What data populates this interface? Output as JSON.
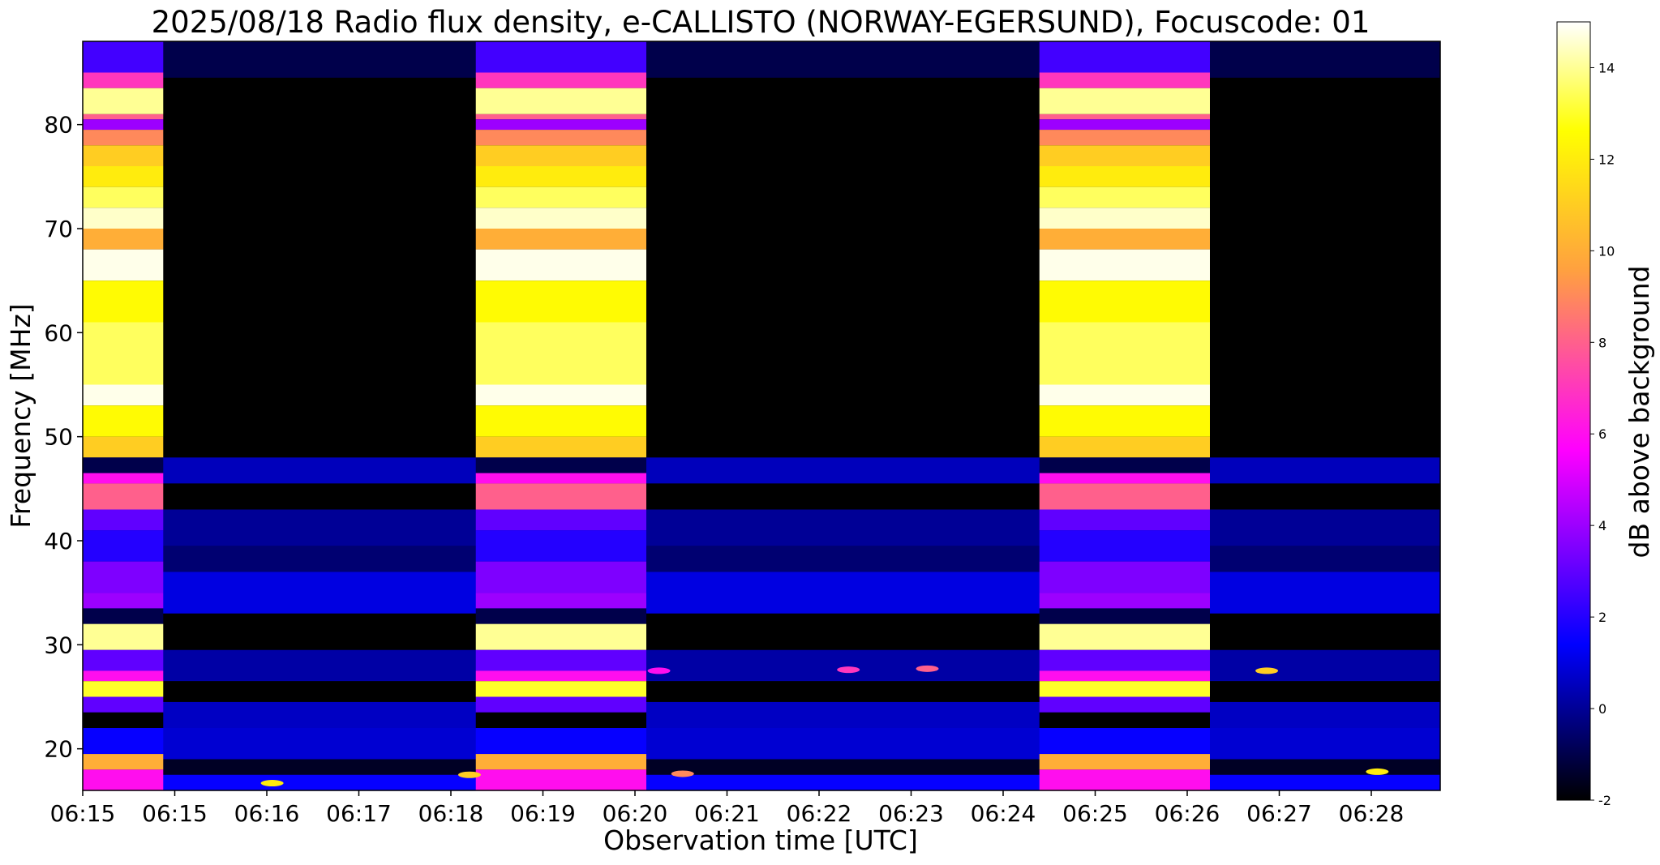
{
  "chart_data": {
    "type": "heatmap",
    "title": "2025/08/18  Radio flux density, e-CALLISTO (NORWAY-EGERSUND), Focuscode: 01",
    "xlabel": "Observation time [UTC]",
    "ylabel": "Frequency [MHz]",
    "colorbar_label": "dB above background",
    "x_tick_labels": [
      "06:15",
      "06:15",
      "06:16",
      "06:17",
      "06:18",
      "06:19",
      "06:20",
      "06:21",
      "06:22",
      "06:23",
      "06:24",
      "06:25",
      "06:26",
      "06:27",
      "06:28"
    ],
    "ylim": [
      16,
      88
    ],
    "y_ticks": [
      20,
      30,
      40,
      50,
      60,
      70,
      80
    ],
    "clim": [
      -2,
      15
    ],
    "colorbar_ticks": [
      -2,
      0,
      2,
      4,
      6,
      8,
      10,
      12,
      14
    ],
    "colormap": [
      "#000000",
      "#0000ff",
      "#ff00ff",
      "#ffa040",
      "#ffff00",
      "#ffffff"
    ],
    "grid": false,
    "calibration_segments": [
      {
        "start": "06:15:00",
        "end": "06:15:51"
      },
      {
        "start": "06:19:09",
        "end": "06:20:57"
      },
      {
        "start": "06:25:06",
        "end": "06:26:54"
      }
    ],
    "calibration_profile": [
      {
        "freq_range": [
          85,
          88
        ],
        "db": 2.5
      },
      {
        "freq_range": [
          83.5,
          85
        ],
        "db": 7
      },
      {
        "freq_range": [
          81,
          83.5
        ],
        "db": 14
      },
      {
        "freq_range": [
          80.5,
          81
        ],
        "db": 8
      },
      {
        "freq_range": [
          79.5,
          80.5
        ],
        "db": 4
      },
      {
        "freq_range": [
          78,
          79.5
        ],
        "db": 9
      },
      {
        "freq_range": [
          76,
          78
        ],
        "db": 11
      },
      {
        "freq_range": [
          74,
          76
        ],
        "db": 12
      },
      {
        "freq_range": [
          72,
          74
        ],
        "db": 13.5
      },
      {
        "freq_range": [
          70,
          72
        ],
        "db": 14.5
      },
      {
        "freq_range": [
          68,
          70
        ],
        "db": 10
      },
      {
        "freq_range": [
          65,
          68
        ],
        "db": 14.8
      },
      {
        "freq_range": [
          61,
          65
        ],
        "db": 12.5
      },
      {
        "freq_range": [
          55,
          61
        ],
        "db": 13.5
      },
      {
        "freq_range": [
          53,
          55
        ],
        "db": 14.8
      },
      {
        "freq_range": [
          50,
          53
        ],
        "db": 12.5
      },
      {
        "freq_range": [
          48,
          50
        ],
        "db": 11
      },
      {
        "freq_range": [
          46.5,
          48
        ],
        "db": -1
      },
      {
        "freq_range": [
          45.5,
          46.5
        ],
        "db": 6
      },
      {
        "freq_range": [
          43,
          45.5
        ],
        "db": 8
      },
      {
        "freq_range": [
          41,
          43
        ],
        "db": 3
      },
      {
        "freq_range": [
          38,
          41
        ],
        "db": 2
      },
      {
        "freq_range": [
          35,
          38
        ],
        "db": 3.5
      },
      {
        "freq_range": [
          33.5,
          35
        ],
        "db": 4
      },
      {
        "freq_range": [
          32,
          33.5
        ],
        "db": -1
      },
      {
        "freq_range": [
          29.5,
          32
        ],
        "db": 14
      },
      {
        "freq_range": [
          27.5,
          29.5
        ],
        "db": 3
      },
      {
        "freq_range": [
          26.5,
          27.5
        ],
        "db": 6
      },
      {
        "freq_range": [
          25,
          26.5
        ],
        "db": 13
      },
      {
        "freq_range": [
          23.5,
          25
        ],
        "db": 3
      },
      {
        "freq_range": [
          22,
          23.5
        ],
        "db": -2
      },
      {
        "freq_range": [
          19.5,
          22
        ],
        "db": 1.5
      },
      {
        "freq_range": [
          18,
          19.5
        ],
        "db": 10
      },
      {
        "freq_range": [
          16,
          18
        ],
        "db": 6
      }
    ],
    "background_profile": [
      {
        "freq_range": [
          84.5,
          88
        ],
        "db": -1
      },
      {
        "freq_range": [
          48,
          84.5
        ],
        "db": -2
      },
      {
        "freq_range": [
          45.5,
          48
        ],
        "db": 0.5
      },
      {
        "freq_range": [
          43,
          45.5
        ],
        "db": -2
      },
      {
        "freq_range": [
          39.5,
          43
        ],
        "db": 0
      },
      {
        "freq_range": [
          37,
          39.5
        ],
        "db": -0.5
      },
      {
        "freq_range": [
          33,
          37
        ],
        "db": 1
      },
      {
        "freq_range": [
          29.5,
          33
        ],
        "db": -2
      },
      {
        "freq_range": [
          26.5,
          29.5
        ],
        "db": 0.2
      },
      {
        "freq_range": [
          24.5,
          26.5
        ],
        "db": -2
      },
      {
        "freq_range": [
          22,
          24.5
        ],
        "db": 0.6
      },
      {
        "freq_range": [
          19,
          22
        ],
        "db": 0.8
      },
      {
        "freq_range": [
          17.5,
          19
        ],
        "db": -1.5
      },
      {
        "freq_range": [
          16,
          17.5
        ],
        "db": 1.5
      }
    ],
    "hot_spots": [
      {
        "time": "06:17:00",
        "freq": 16.7,
        "db": 12
      },
      {
        "time": "06:19:05",
        "freq": 17.5,
        "db": 11
      },
      {
        "time": "06:21:20",
        "freq": 17.6,
        "db": 9
      },
      {
        "time": "06:21:05",
        "freq": 27.5,
        "db": 6
      },
      {
        "time": "06:23:05",
        "freq": 27.6,
        "db": 7
      },
      {
        "time": "06:23:55",
        "freq": 27.7,
        "db": 8
      },
      {
        "time": "06:27:30",
        "freq": 27.5,
        "db": 11
      },
      {
        "time": "06:28:40",
        "freq": 17.8,
        "db": 12
      }
    ]
  }
}
